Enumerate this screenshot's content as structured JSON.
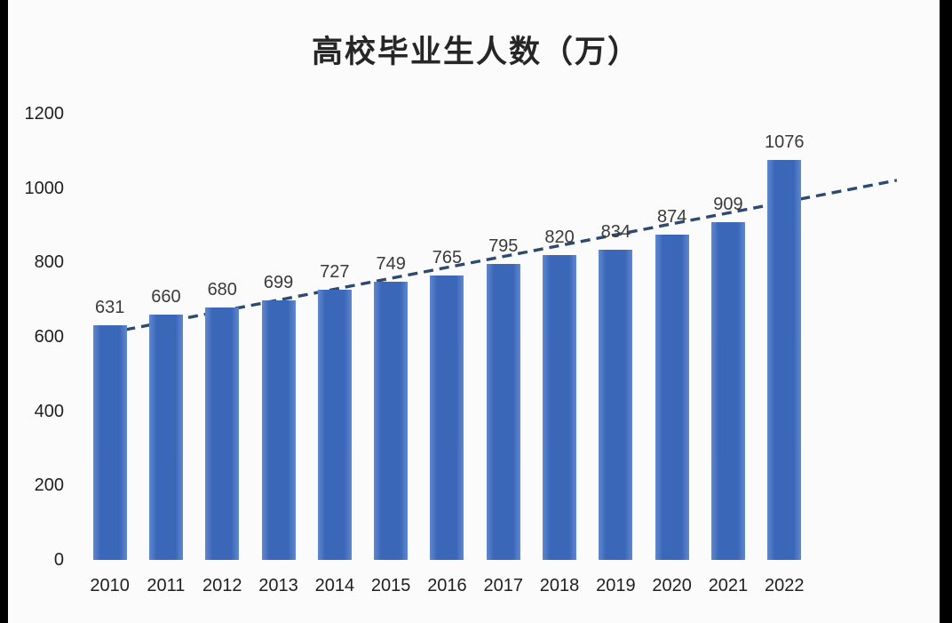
{
  "chart_data": {
    "type": "bar",
    "title": "高校毕业生人数（万）",
    "categories": [
      "2010",
      "2011",
      "2012",
      "2013",
      "2014",
      "2015",
      "2016",
      "2017",
      "2018",
      "2019",
      "2020",
      "2021",
      "2022"
    ],
    "values": [
      631,
      660,
      680,
      699,
      727,
      749,
      765,
      795,
      820,
      834,
      874,
      909,
      1076
    ],
    "xlabel": "",
    "ylabel": "",
    "ylim": [
      0,
      1200
    ],
    "yticks": [
      0,
      200,
      400,
      600,
      800,
      1000,
      1200
    ],
    "grid": false,
    "legend": false,
    "background": "#fbfbfc",
    "frame_color": "#000000",
    "title_color": "#262626",
    "axis_label_color": "#1f1f1f",
    "value_label_color": "#3a3a3a",
    "bar_color": "#3b67b8",
    "bar_edge_color": "#5f88cf",
    "trendline": {
      "style": "dashed",
      "color": "#2d4a70",
      "start": {
        "x": 2010,
        "y": 611
      },
      "end": {
        "x": 2024,
        "y": 1021
      }
    }
  }
}
